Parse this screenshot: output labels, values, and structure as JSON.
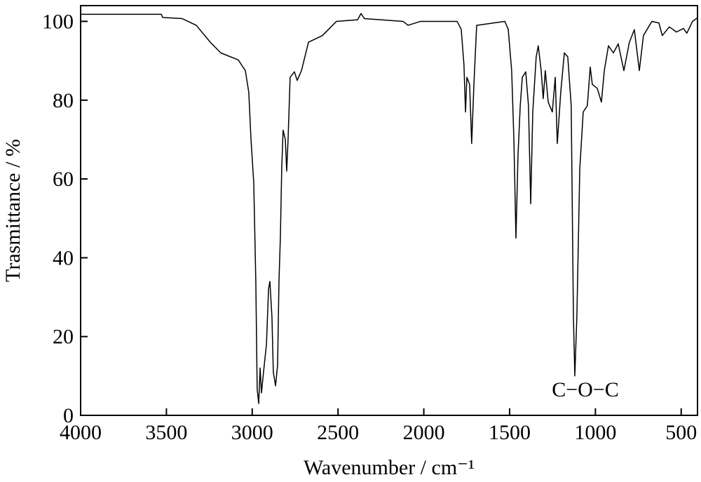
{
  "chart_data": {
    "type": "line",
    "x_label": "Wavenumber / cm⁻¹",
    "y_label": "Trasmittance / %",
    "annotation": "C−O−C",
    "color": "#000000",
    "xlim": [
      4000,
      405
    ],
    "ylim": [
      0,
      104
    ],
    "xticks": [
      4000,
      3500,
      3000,
      2500,
      2000,
      1500,
      1000,
      500
    ],
    "yticks": [
      0,
      20,
      40,
      60,
      80,
      100
    ],
    "x": [
      4000,
      3530,
      3522,
      3408,
      3326,
      3244,
      3183,
      3081,
      3040,
      3020,
      3007,
      2991,
      2979,
      2971,
      2962,
      2954,
      2946,
      2934,
      2917,
      2905,
      2897,
      2885,
      2877,
      2864,
      2852,
      2844,
      2836,
      2828,
      2820,
      2807,
      2799,
      2791,
      2779,
      2754,
      2738,
      2713,
      2672,
      2591,
      2509,
      2386,
      2366,
      2346,
      2121,
      2092,
      2019,
      1806,
      1782,
      1766,
      1757,
      1749,
      1733,
      1721,
      1708,
      1692,
      1528,
      1508,
      1488,
      1475,
      1463,
      1451,
      1438,
      1426,
      1406,
      1390,
      1377,
      1365,
      1345,
      1333,
      1316,
      1304,
      1292,
      1275,
      1251,
      1234,
      1222,
      1202,
      1181,
      1161,
      1141,
      1128,
      1120,
      1108,
      1091,
      1071,
      1047,
      1030,
      1018,
      989,
      965,
      948,
      924,
      895,
      867,
      834,
      802,
      773,
      744,
      720,
      671,
      630,
      610,
      569,
      528,
      487,
      467,
      434,
      405
    ],
    "values": [
      101.8,
      101.8,
      101,
      100.7,
      99,
      94.7,
      92,
      90.2,
      87.5,
      82,
      70,
      59,
      34,
      6.6,
      3,
      12,
      5.7,
      11,
      18,
      32,
      34,
      25,
      11,
      7.5,
      12.8,
      34,
      45,
      62.6,
      72.4,
      70,
      62,
      70,
      85.8,
      87.2,
      85,
      87.5,
      94.7,
      96.4,
      100,
      100.4,
      102,
      100.7,
      100,
      99,
      100,
      100,
      98,
      89,
      77,
      85.8,
      84,
      69,
      84,
      99,
      100,
      98,
      87.5,
      70,
      45,
      66,
      78.6,
      85.8,
      87.2,
      78.6,
      53.7,
      77,
      91,
      93.8,
      87.5,
      80.4,
      87.5,
      79.5,
      77,
      85.8,
      69,
      82,
      92,
      91,
      78.6,
      25,
      10,
      25,
      62.6,
      77,
      78.6,
      88.4,
      84,
      83,
      79.5,
      87.5,
      93.8,
      92,
      94.3,
      87.5,
      94.7,
      97.9,
      87.5,
      96.4,
      100,
      99.6,
      96.4,
      98.6,
      97.3,
      98.2,
      97,
      100,
      100.9
    ]
  }
}
